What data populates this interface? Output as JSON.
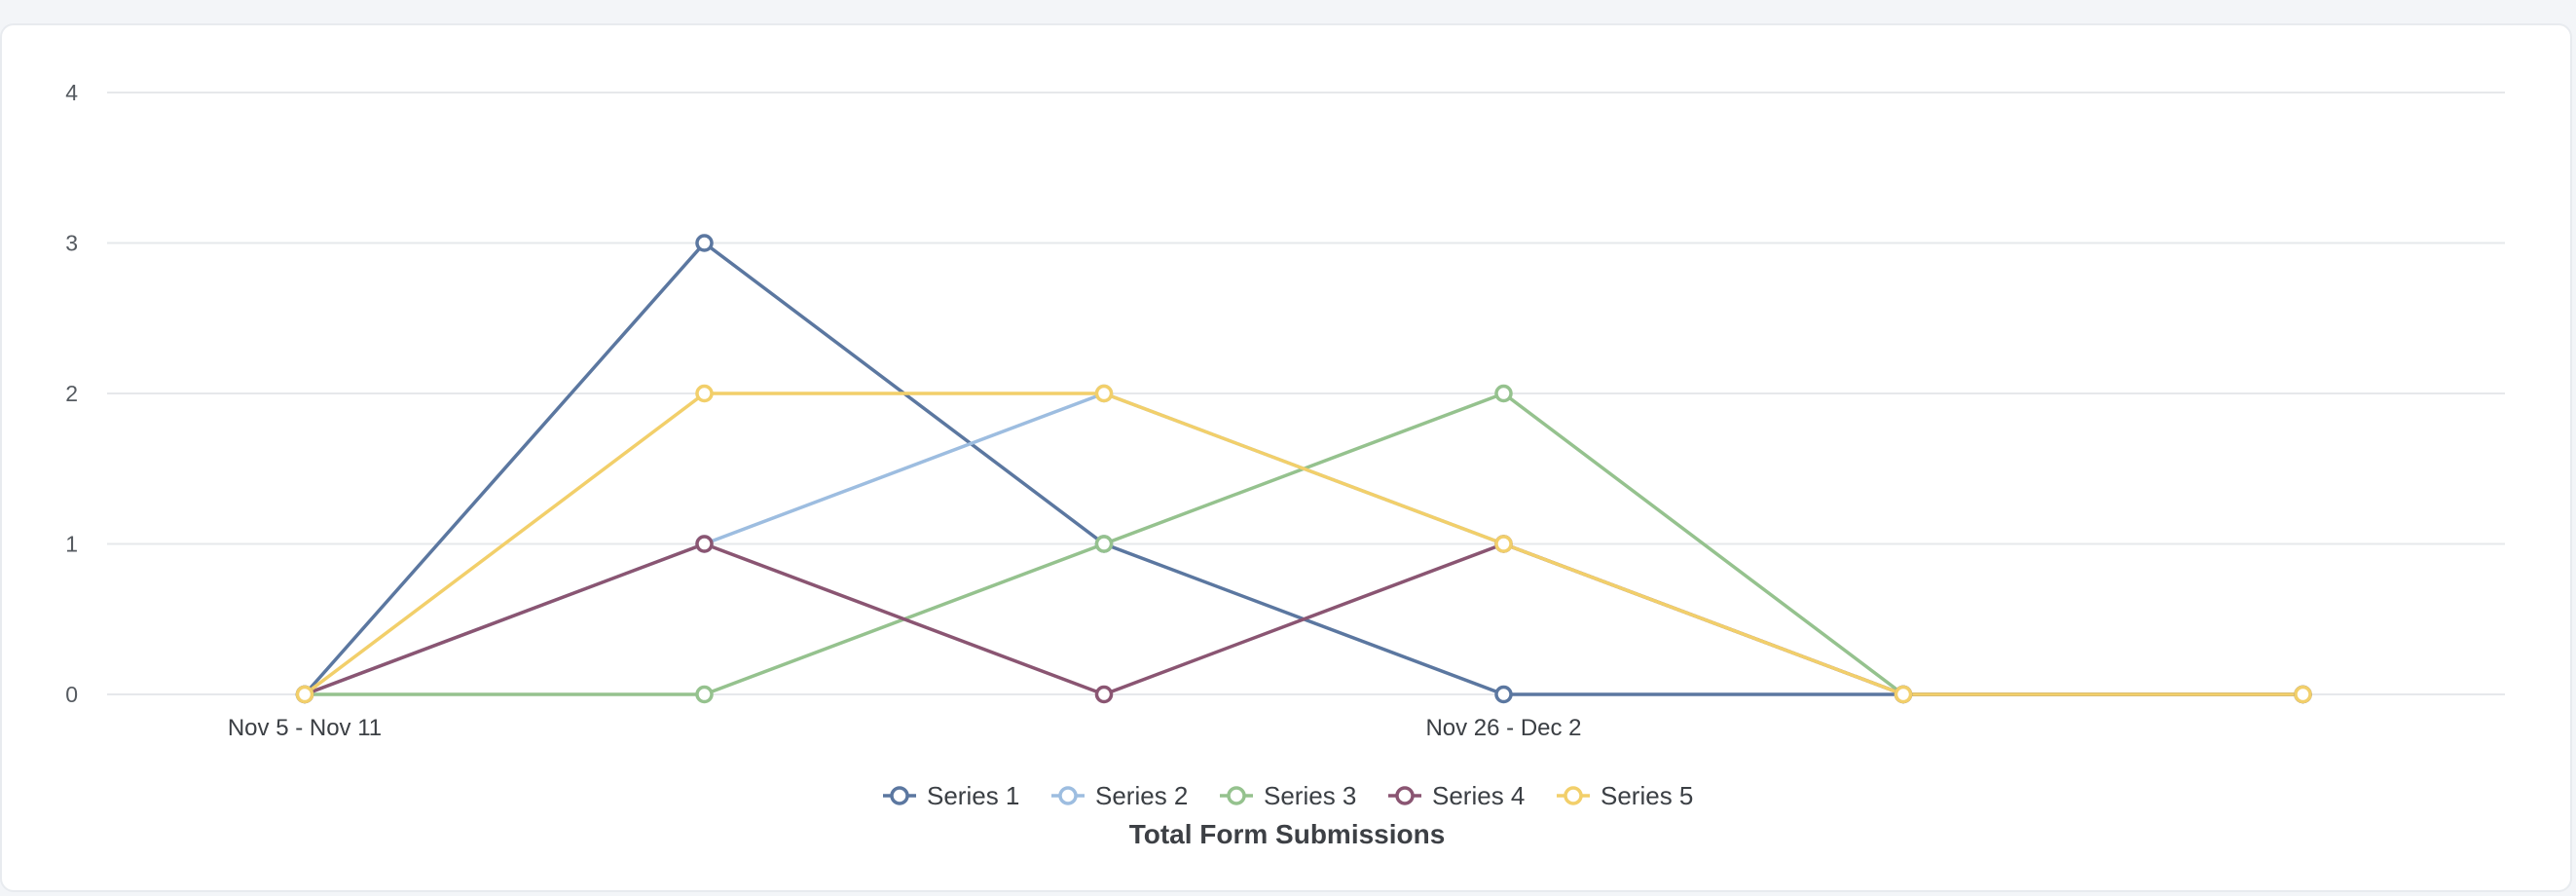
{
  "chart_data": {
    "type": "line",
    "title": "Total Form Submissions",
    "xlabel": "",
    "ylabel": "",
    "ylim": [
      0,
      4
    ],
    "yticks": [
      0,
      1,
      2,
      3,
      4
    ],
    "x_count": 6,
    "xtick_labels": [
      {
        "index": 0,
        "label": "Nov 5 - Nov 11"
      },
      {
        "index": 3,
        "label": "Nov 26 - Dec 2"
      }
    ],
    "grid": true,
    "legend_position": "bottom",
    "series": [
      {
        "name": "Series 1",
        "color": "#5b77a0",
        "values": [
          0,
          3,
          1,
          0,
          0,
          0
        ]
      },
      {
        "name": "Series 2",
        "color": "#9dbde0",
        "values": [
          0,
          1,
          2,
          1,
          0,
          0
        ]
      },
      {
        "name": "Series 3",
        "color": "#95c28e",
        "values": [
          0,
          0,
          1,
          2,
          0,
          0
        ]
      },
      {
        "name": "Series 4",
        "color": "#8a5572",
        "values": [
          0,
          1,
          0,
          1,
          0,
          0
        ]
      },
      {
        "name": "Series 5",
        "color": "#f2cf6a",
        "values": [
          0,
          2,
          2,
          1,
          0,
          0
        ]
      }
    ]
  }
}
